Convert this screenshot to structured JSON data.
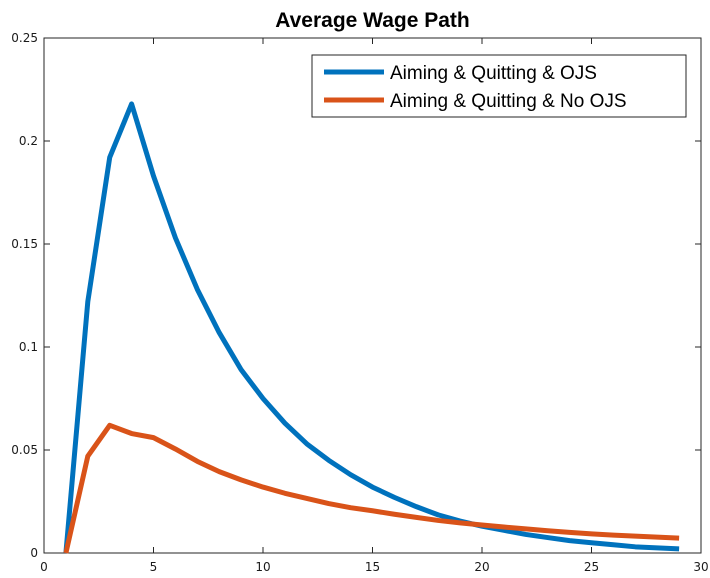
{
  "chart_data": {
    "type": "line",
    "title": "Average Wage Path",
    "xlabel": "",
    "ylabel": "",
    "xlim": [
      0,
      30
    ],
    "ylim": [
      0,
      0.25
    ],
    "xticks": [
      0,
      5,
      10,
      15,
      20,
      25,
      30
    ],
    "xtick_labels": [
      "0",
      "5",
      "10",
      "15",
      "20",
      "25",
      "30"
    ],
    "yticks": [
      0,
      0.05,
      0.1,
      0.15,
      0.2,
      0.25
    ],
    "ytick_labels": [
      "0",
      "0.05",
      "0.1",
      "0.15",
      "0.2",
      "0.25"
    ],
    "grid": false,
    "legend_position": "top-right",
    "series": [
      {
        "name": "Aiming & Quitting & OJS",
        "color": "#0072BD",
        "x": [
          1,
          2,
          3,
          4,
          5,
          6,
          7,
          8,
          9,
          10,
          11,
          12,
          13,
          14,
          15,
          16,
          17,
          18,
          19,
          20,
          21,
          22,
          23,
          24,
          25,
          26,
          27,
          28,
          29
        ],
        "y": [
          0,
          0.122,
          0.192,
          0.218,
          0.183,
          0.153,
          0.128,
          0.107,
          0.089,
          0.075,
          0.063,
          0.053,
          0.045,
          0.038,
          0.032,
          0.027,
          0.0225,
          0.0185,
          0.0155,
          0.013,
          0.011,
          0.009,
          0.0075,
          0.006,
          0.005,
          0.004,
          0.003,
          0.0025,
          0.002
        ]
      },
      {
        "name": "Aiming & Quitting & No OJS",
        "color": "#D95319",
        "x": [
          1,
          2,
          3,
          4,
          5,
          6,
          7,
          8,
          9,
          10,
          11,
          12,
          13,
          14,
          15,
          16,
          17,
          18,
          19,
          20,
          21,
          22,
          23,
          24,
          25,
          26,
          27,
          28,
          29
        ],
        "y": [
          0,
          0.047,
          0.062,
          0.058,
          0.056,
          0.0505,
          0.0445,
          0.0395,
          0.0355,
          0.032,
          0.029,
          0.0265,
          0.024,
          0.022,
          0.0205,
          0.0188,
          0.0173,
          0.0158,
          0.0146,
          0.0136,
          0.0126,
          0.0117,
          0.0108,
          0.01,
          0.0093,
          0.0087,
          0.0082,
          0.0077,
          0.0072
        ]
      }
    ]
  }
}
